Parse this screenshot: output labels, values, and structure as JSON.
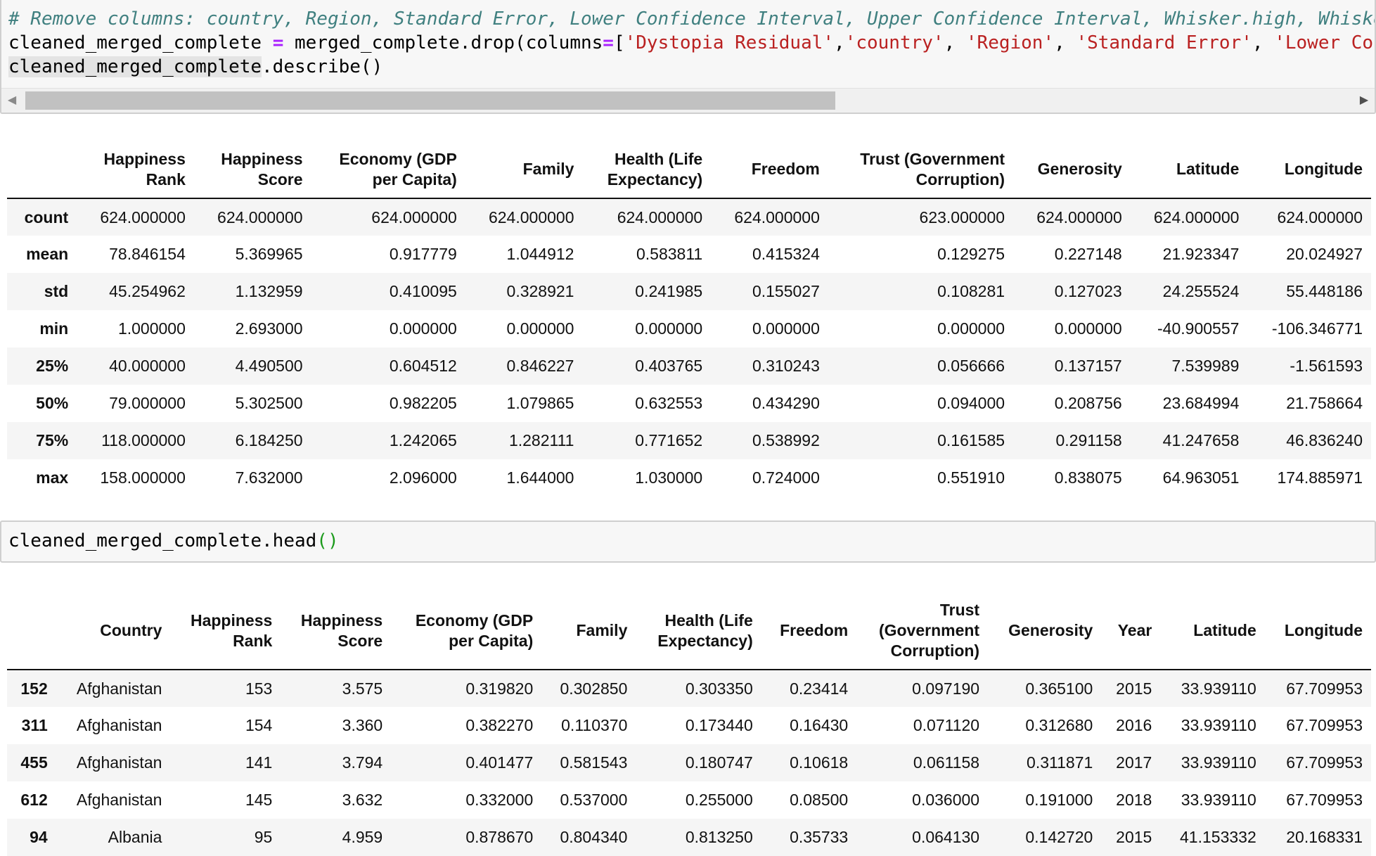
{
  "cells": [
    {
      "lines": [
        [
          {
            "t": "# Remove columns: country, Region, Standard Error, Lower Confidence Interval, Upper Confidence Interval, Whisker.high, Whiske",
            "c": "comment"
          }
        ],
        [
          {
            "t": "cleaned_merged_complete ",
            "c": ""
          },
          {
            "t": "=",
            "c": "op"
          },
          {
            "t": " merged_complete.drop(columns",
            "c": ""
          },
          {
            "t": "=",
            "c": "op"
          },
          {
            "t": "[",
            "c": ""
          },
          {
            "t": "'Dystopia Residual'",
            "c": "str"
          },
          {
            "t": ",",
            "c": ""
          },
          {
            "t": "'country'",
            "c": "str"
          },
          {
            "t": ", ",
            "c": ""
          },
          {
            "t": "'Region'",
            "c": "str"
          },
          {
            "t": ", ",
            "c": ""
          },
          {
            "t": "'Standard Error'",
            "c": "str"
          },
          {
            "t": ", ",
            "c": ""
          },
          {
            "t": "'Lower Con",
            "c": "str"
          }
        ],
        [
          {
            "t": "cleaned_merged_complete",
            "c": "highlight"
          },
          {
            "t": ".describe()",
            "c": ""
          }
        ]
      ]
    },
    {
      "lines": [
        [
          {
            "t": "cleaned_merged_complete.head",
            "c": ""
          },
          {
            "t": "()",
            "c": "paren-green"
          }
        ]
      ]
    }
  ],
  "describe_table": {
    "columns": [
      [
        "Happiness",
        "Rank"
      ],
      [
        "Happiness",
        "Score"
      ],
      [
        "Economy (GDP",
        "per Capita)"
      ],
      [
        "Family"
      ],
      [
        "Health (Life",
        "Expectancy)"
      ],
      [
        "Freedom"
      ],
      [
        "Trust (Government",
        "Corruption)"
      ],
      [
        "Generosity"
      ],
      [
        "Latitude"
      ],
      [
        "Longitude"
      ]
    ],
    "rows": [
      {
        "index": "count",
        "values": [
          "624.000000",
          "624.000000",
          "624.000000",
          "624.000000",
          "624.000000",
          "624.000000",
          "623.000000",
          "624.000000",
          "624.000000",
          "624.000000"
        ]
      },
      {
        "index": "mean",
        "values": [
          "78.846154",
          "5.369965",
          "0.917779",
          "1.044912",
          "0.583811",
          "0.415324",
          "0.129275",
          "0.227148",
          "21.923347",
          "20.024927"
        ]
      },
      {
        "index": "std",
        "values": [
          "45.254962",
          "1.132959",
          "0.410095",
          "0.328921",
          "0.241985",
          "0.155027",
          "0.108281",
          "0.127023",
          "24.255524",
          "55.448186"
        ]
      },
      {
        "index": "min",
        "values": [
          "1.000000",
          "2.693000",
          "0.000000",
          "0.000000",
          "0.000000",
          "0.000000",
          "0.000000",
          "0.000000",
          "-40.900557",
          "-106.346771"
        ]
      },
      {
        "index": "25%",
        "values": [
          "40.000000",
          "4.490500",
          "0.604512",
          "0.846227",
          "0.403765",
          "0.310243",
          "0.056666",
          "0.137157",
          "7.539989",
          "-1.561593"
        ]
      },
      {
        "index": "50%",
        "values": [
          "79.000000",
          "5.302500",
          "0.982205",
          "1.079865",
          "0.632553",
          "0.434290",
          "0.094000",
          "0.208756",
          "23.684994",
          "21.758664"
        ]
      },
      {
        "index": "75%",
        "values": [
          "118.000000",
          "6.184250",
          "1.242065",
          "1.282111",
          "0.771652",
          "0.538992",
          "0.161585",
          "0.291158",
          "41.247658",
          "46.836240"
        ]
      },
      {
        "index": "max",
        "values": [
          "158.000000",
          "7.632000",
          "2.096000",
          "1.644000",
          "1.030000",
          "0.724000",
          "0.551910",
          "0.838075",
          "64.963051",
          "174.885971"
        ]
      }
    ]
  },
  "head_table": {
    "columns": [
      [
        "Country"
      ],
      [
        "Happiness",
        "Rank"
      ],
      [
        "Happiness",
        "Score"
      ],
      [
        "Economy (GDP",
        "per Capita)"
      ],
      [
        "Family"
      ],
      [
        "Health (Life",
        "Expectancy)"
      ],
      [
        "Freedom"
      ],
      [
        "Trust",
        "(Government",
        "Corruption)"
      ],
      [
        "Generosity"
      ],
      [
        "Year"
      ],
      [
        "Latitude"
      ],
      [
        "Longitude"
      ]
    ],
    "rows": [
      {
        "index": "152",
        "values": [
          "Afghanistan",
          "153",
          "3.575",
          "0.319820",
          "0.302850",
          "0.303350",
          "0.23414",
          "0.097190",
          "0.365100",
          "2015",
          "33.939110",
          "67.709953"
        ]
      },
      {
        "index": "311",
        "values": [
          "Afghanistan",
          "154",
          "3.360",
          "0.382270",
          "0.110370",
          "0.173440",
          "0.16430",
          "0.071120",
          "0.312680",
          "2016",
          "33.939110",
          "67.709953"
        ]
      },
      {
        "index": "455",
        "values": [
          "Afghanistan",
          "141",
          "3.794",
          "0.401477",
          "0.581543",
          "0.180747",
          "0.10618",
          "0.061158",
          "0.311871",
          "2017",
          "33.939110",
          "67.709953"
        ]
      },
      {
        "index": "612",
        "values": [
          "Afghanistan",
          "145",
          "3.632",
          "0.332000",
          "0.537000",
          "0.255000",
          "0.08500",
          "0.036000",
          "0.191000",
          "2018",
          "33.939110",
          "67.709953"
        ]
      },
      {
        "index": "94",
        "values": [
          "Albania",
          "95",
          "4.959",
          "0.878670",
          "0.804340",
          "0.813250",
          "0.35733",
          "0.064130",
          "0.142720",
          "2015",
          "41.153332",
          "20.168331"
        ]
      }
    ]
  },
  "icons": {
    "scroll_left": "arrow-left-icon",
    "scroll_right": "arrow-right-icon"
  }
}
